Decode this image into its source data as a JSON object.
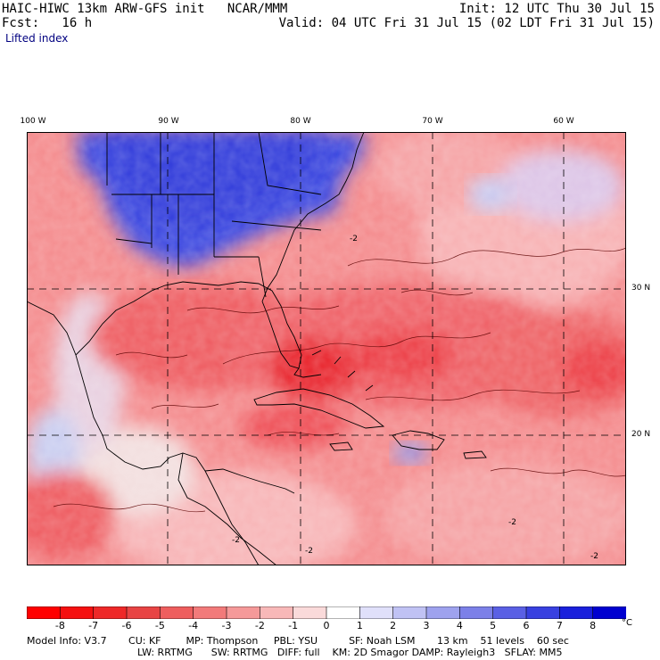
{
  "header": {
    "line1_left": "HAIC-HIWC 13km ARW-GFS init   NCAR/MMM",
    "line1_right": "Init: 12 UTC Thu 30 Jul 15",
    "line2_left": "Fcst:   16 h",
    "line2_right": "Valid: 04 UTC Fri 31 Jul 15 (02 LDT Fri 31 Jul 15)",
    "field_name": "Lifted index"
  },
  "map": {
    "lon_labels": [
      "100 W",
      "90 W",
      "80 W",
      "70 W",
      "60 W"
    ],
    "lat_labels": [
      "30 N",
      "20 N"
    ],
    "contour_labels": [
      "-2",
      "-2",
      "-2",
      "-2",
      "-2"
    ],
    "colors": {
      "strong_unstable": "#e8102a",
      "moderate_unstable": "#f25a60",
      "weak_unstable": "#f9a6a8",
      "stable": "#2f3de0",
      "mild_stable": "#b9bdf2",
      "neutral": "#f4dcdc"
    }
  },
  "colorbar": {
    "levels": [
      "-8",
      "-7",
      "-6",
      "-5",
      "-4",
      "-3",
      "-2",
      "-1",
      "0",
      "1",
      "2",
      "3",
      "4",
      "5",
      "6",
      "7",
      "8"
    ],
    "unit": "°C",
    "colors": [
      "#ff0000",
      "#f51010",
      "#ee2828",
      "#e84444",
      "#ee5e5e",
      "#f27a7a",
      "#f59999",
      "#f8b8b8",
      "#fadada",
      "#ffffff",
      "#e0e0fa",
      "#c0c2f4",
      "#9ea2ee",
      "#7c80e8",
      "#5a60e4",
      "#3840e0",
      "#1a20dc",
      "#0000d0"
    ]
  },
  "footer": {
    "line1": "Model Info: V3.7       CU: KF        MP: Thompson     PBL: YSU          SF: Noah LSM       13 km    51 levels    60 sec",
    "line2": "LW: RRTMG      SW: RRTMG   DIFF: full    KM: 2D Smagor DAMP: Rayleigh3   SFLAY: MM5"
  }
}
